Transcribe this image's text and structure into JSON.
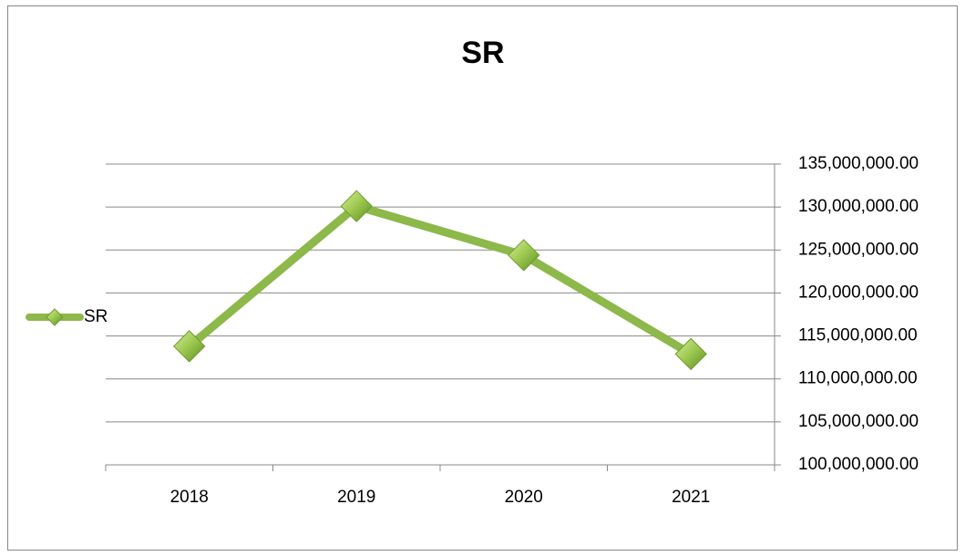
{
  "chart_data": {
    "type": "line",
    "title": "SR",
    "categories": [
      "2018",
      "2019",
      "2020",
      "2021"
    ],
    "series": [
      {
        "name": "SR",
        "color": "#8db84a",
        "values": [
          113800000,
          130100000,
          124400000,
          112900000
        ]
      }
    ],
    "ylim": [
      100000000,
      135000000
    ],
    "yticks": [
      {
        "value": 100000000,
        "label": "100,000,000.00"
      },
      {
        "value": 105000000,
        "label": "105,000,000.00"
      },
      {
        "value": 110000000,
        "label": "110,000,000.00"
      },
      {
        "value": 115000000,
        "label": "115,000,000.00"
      },
      {
        "value": 120000000,
        "label": "120,000,000.00"
      },
      {
        "value": 125000000,
        "label": "125,000,000.00"
      },
      {
        "value": 130000000,
        "label": "130,000,000.00"
      },
      {
        "value": 135000000,
        "label": "135,000,000.00"
      }
    ],
    "grid": true,
    "legend": "left",
    "yaxis_side": "right"
  }
}
